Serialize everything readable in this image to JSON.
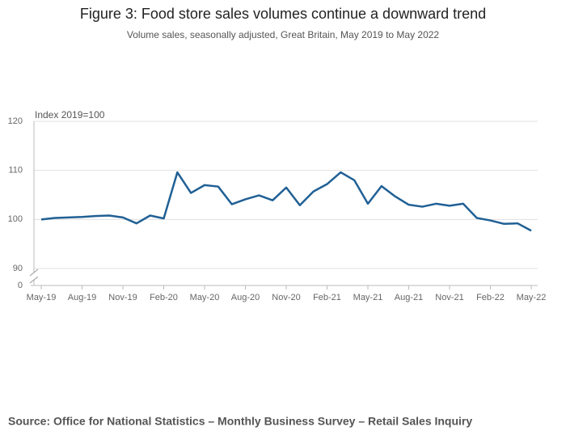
{
  "chart_data": {
    "type": "line",
    "title": "Figure 3: Food store sales volumes continue a downward trend",
    "subtitle": "Volume sales, seasonally adjusted, Great Britain, May 2019 to May 2022",
    "y_label": "Index 2019=100",
    "source": "Source: Office for National Statistics – Monthly Business Survey – Retail Sales Inquiry",
    "categories": [
      "May-19",
      null,
      null,
      "Aug-19",
      null,
      null,
      "Nov-19",
      null,
      null,
      "Feb-20",
      null,
      null,
      "May-20",
      null,
      null,
      "Aug-20",
      null,
      null,
      "Nov-20",
      null,
      null,
      "Feb-21",
      null,
      null,
      "May-21",
      null,
      null,
      "Aug-21",
      null,
      null,
      "Nov-21",
      null,
      null,
      "Feb-22",
      null,
      null,
      "May-22"
    ],
    "series": [
      {
        "color": "#206095",
        "values": [
          100.0,
          100.3,
          100.4,
          100.5,
          100.7,
          100.8,
          100.4,
          99.2,
          100.8,
          100.2,
          109.6,
          105.4,
          107.0,
          106.7,
          103.1,
          104.1,
          104.9,
          103.9,
          106.5,
          102.9,
          105.7,
          107.2,
          109.6,
          108.0,
          103.2,
          106.8,
          104.7,
          103.0,
          102.6,
          103.2,
          102.8,
          103.2,
          100.3,
          99.8,
          99.1,
          99.2,
          97.7
        ]
      }
    ],
    "ylim": [
      0,
      120
    ],
    "axis_break": [
      0,
      90
    ],
    "yticks": [
      0,
      90,
      100,
      110,
      120
    ],
    "grid": true
  }
}
